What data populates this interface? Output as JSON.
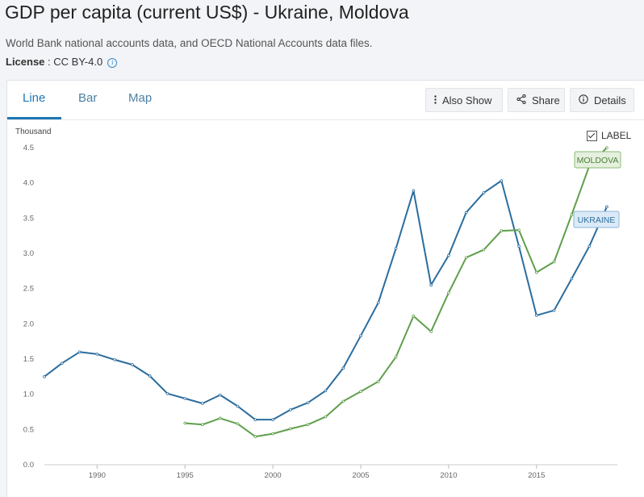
{
  "header": {
    "title": "GDP per capita (current US$) - Ukraine, Moldova",
    "source": "World Bank national accounts data, and OECD National Accounts data files.",
    "license_label": "License",
    "license_value": " : CC BY-4.0"
  },
  "tabs": [
    {
      "label": "Line",
      "active": true
    },
    {
      "label": "Bar",
      "active": false
    },
    {
      "label": "Map",
      "active": false
    }
  ],
  "toolbar": {
    "also_show": "Also Show",
    "share": "Share",
    "details": "Details"
  },
  "label_toggle": {
    "text": "LABEL",
    "checked": true
  },
  "chart_data": {
    "type": "line",
    "ylabel": "Thousand",
    "xlim": [
      1987,
      2019.6
    ],
    "ylim": [
      0,
      4.5
    ],
    "x_ticks": [
      1990,
      1995,
      2000,
      2005,
      2010,
      2015
    ],
    "y_ticks": [
      "0.0",
      "0.5",
      "1.0",
      "1.5",
      "2.0",
      "2.5",
      "3.0",
      "3.5",
      "4.0",
      "4.5"
    ],
    "grid": false,
    "series": [
      {
        "name": "UKRAINE",
        "color": "#2b6d9e",
        "x": [
          1987,
          1988,
          1989,
          1990,
          1991,
          1992,
          1993,
          1994,
          1995,
          1996,
          1997,
          1998,
          1999,
          2000,
          2001,
          2002,
          2003,
          2004,
          2005,
          2006,
          2007,
          2008,
          2009,
          2010,
          2011,
          2012,
          2013,
          2014,
          2015,
          2016,
          2017,
          2018,
          2019
        ],
        "values": [
          1.25,
          1.44,
          1.6,
          1.57,
          1.49,
          1.42,
          1.26,
          1.01,
          0.94,
          0.87,
          0.99,
          0.83,
          0.64,
          0.64,
          0.78,
          0.88,
          1.05,
          1.37,
          1.83,
          2.3,
          3.07,
          3.89,
          2.55,
          2.97,
          3.58,
          3.86,
          4.03,
          3.1,
          2.12,
          2.19,
          2.64,
          3.1,
          3.66
        ]
      },
      {
        "name": "MOLDOVA",
        "color": "#5f9f4c",
        "x": [
          1995,
          1996,
          1997,
          1998,
          1999,
          2000,
          2001,
          2002,
          2003,
          2004,
          2005,
          2006,
          2007,
          2008,
          2009,
          2010,
          2011,
          2012,
          2013,
          2014,
          2015,
          2016,
          2017,
          2018,
          2019
        ],
        "values": [
          0.59,
          0.57,
          0.66,
          0.58,
          0.4,
          0.44,
          0.51,
          0.57,
          0.68,
          0.9,
          1.04,
          1.18,
          1.53,
          2.11,
          1.89,
          2.44,
          2.94,
          3.05,
          3.32,
          3.33,
          2.73,
          2.88,
          3.55,
          4.24,
          4.5
        ]
      }
    ]
  }
}
